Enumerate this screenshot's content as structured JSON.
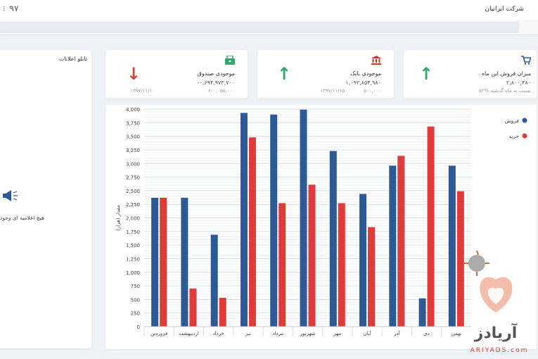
{
  "header": {
    "year": "۹۷",
    "company_name": "شرکت ایرانیان"
  },
  "cards": {
    "sales": {
      "icon": "cart-icon",
      "title": "میزان فروش این ماه",
      "value": "۲,۸۰۰,۴۸۰",
      "sub": "۸۲% نسبت به ماه گذشته",
      "trend": "up",
      "accent": "#2ea86b"
    },
    "bank": {
      "icon": "bank-icon",
      "title": "موجودی بانک",
      "value": "۱,۰۹۲,۸۵۴,۹۸۰",
      "sub": "۱۳۹۷/۱۱/۱۵",
      "sub2": "۵۰۰,۰۰۰",
      "trend": "up",
      "accent": "#2ea86b"
    },
    "cash": {
      "icon": "safe-icon",
      "title": "موجودی صندوق",
      "value": "-۰,۶۹۴,۹۷۳,۷۰۰",
      "sub": "۱۳۹۷/۱۱/۱۰",
      "sub2": "۶۰۰,۰۵۵,۰۰۰",
      "trend": "down",
      "accent": "#d9443a"
    }
  },
  "panel": {
    "title": "تابلو اعلانات",
    "empty_message": "هیچ اعلامیه ای وجود"
  },
  "watermark": {
    "text": "آریادز",
    "sub": "ARIYADS.com"
  },
  "chart_data": {
    "type": "bar",
    "categories": [
      "فروردین",
      "اردیبهشت",
      "خرداد",
      "تیر",
      "مرداد",
      "شهریور",
      "مهر",
      "آبان",
      "آذر",
      "دی",
      "بهمن"
    ],
    "series": [
      {
        "name": "فروش",
        "color": "#2c5a94",
        "values": [
          2370,
          2370,
          1690,
          3930,
          3900,
          3990,
          3230,
          2440,
          2960,
          520,
          2960
        ]
      },
      {
        "name": "خرید",
        "color": "#e03b3b",
        "values": [
          2370,
          700,
          530,
          3480,
          2270,
          2610,
          2270,
          1830,
          3140,
          3680,
          2490
        ]
      }
    ],
    "ylabel": "مقدار (هزار)",
    "ylim": [
      0,
      4000
    ],
    "yticks": [
      "0",
      "250",
      "500",
      "750",
      "1,000",
      "1,250",
      "1,500",
      "1,750",
      "2,000",
      "2,250",
      "2,500",
      "2,750",
      "3,000",
      "3,250",
      "3,500",
      "3,750",
      "4,000"
    ],
    "legend_position": "top-right"
  }
}
